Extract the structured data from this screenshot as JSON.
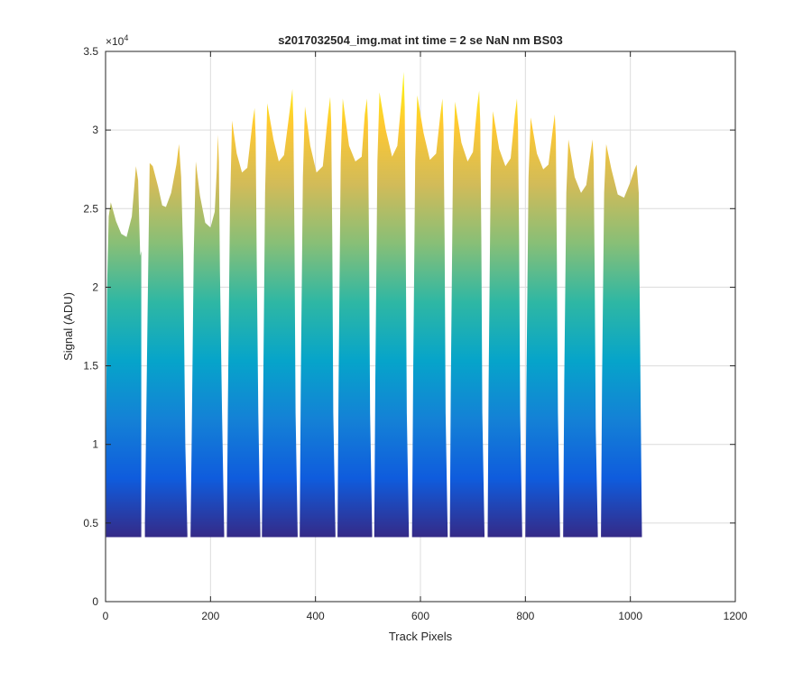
{
  "chart_data": {
    "type": "area",
    "title": "s2017032504_img.mat int time = 2 se  NaN nm BS03",
    "xlabel": "Track Pixels",
    "ylabel": "Signal (ADU)",
    "exponent_label": "×10",
    "exponent_power": "4",
    "xlim": [
      0,
      1200
    ],
    "ylim": [
      0,
      35000
    ],
    "xticks": [
      0,
      200,
      400,
      600,
      800,
      1000,
      1200
    ],
    "xtick_labels": [
      "0",
      "200",
      "400",
      "600",
      "800",
      "1000",
      "1200"
    ],
    "yticks": [
      0,
      5000,
      10000,
      15000,
      20000,
      25000,
      30000,
      35000
    ],
    "ytick_labels": [
      "0",
      "0.5",
      "1",
      "1.5",
      "2",
      "2.5",
      "3",
      "3.5"
    ],
    "grid": true,
    "baseline": 4100,
    "colormap": [
      "#352a87",
      "#0f5cdd",
      "#1481d6",
      "#06a4ca",
      "#2eb7a4",
      "#87bf77",
      "#d1bb59",
      "#fec832",
      "#f9fb0e"
    ],
    "segments": [
      {
        "x": [
          1,
          3,
          6,
          10,
          20,
          30,
          40,
          50,
          58,
          62,
          66,
          68
        ],
        "y": [
          11000,
          20000,
          24500,
          25400,
          24200,
          23400,
          23200,
          24500,
          27700,
          26800,
          22000,
          22300
        ]
      },
      {
        "x": [
          75,
          80,
          84,
          90,
          100,
          108,
          115,
          125,
          135,
          140,
          144,
          148,
          152,
          156
        ],
        "y": [
          5000,
          18000,
          27900,
          27700,
          26400,
          25200,
          25100,
          26000,
          27800,
          29100,
          27000,
          22000,
          10000,
          4300
        ]
      },
      {
        "x": [
          162,
          164,
          168,
          172,
          180,
          190,
          200,
          208,
          212,
          214,
          216,
          218,
          222,
          226
        ],
        "y": [
          4300,
          10000,
          22000,
          28000,
          25800,
          24100,
          23800,
          24800,
          27500,
          29700,
          28000,
          21000,
          12000,
          4300
        ]
      },
      {
        "x": [
          231,
          233,
          237,
          241,
          250,
          260,
          270,
          280,
          284,
          286,
          288,
          291,
          295
        ],
        "y": [
          4300,
          12000,
          25000,
          30600,
          28500,
          27300,
          27600,
          30500,
          31400,
          29500,
          22000,
          12000,
          4300
        ]
      },
      {
        "x": [
          298,
          300,
          304,
          308,
          320,
          330,
          340,
          352,
          356,
          358,
          360,
          362,
          366
        ],
        "y": [
          4300,
          12000,
          26000,
          31700,
          29400,
          28000,
          28400,
          31500,
          32600,
          30500,
          23000,
          12000,
          4300
        ]
      },
      {
        "x": [
          370,
          372,
          376,
          380,
          390,
          402,
          414,
          424,
          428,
          430,
          432,
          434,
          438
        ],
        "y": [
          4300,
          14000,
          27000,
          31500,
          29000,
          27300,
          27700,
          31000,
          32100,
          30500,
          23000,
          12000,
          4300
        ]
      },
      {
        "x": [
          442,
          444,
          448,
          452,
          464,
          476,
          488,
          494,
          498,
          500,
          502,
          504,
          508
        ],
        "y": [
          4300,
          14000,
          28000,
          32000,
          29000,
          28000,
          28300,
          31000,
          32000,
          30500,
          23000,
          12000,
          4300
        ]
      },
      {
        "x": [
          512,
          514,
          518,
          522,
          534,
          546,
          556,
          564,
          568,
          570,
          572,
          574,
          578
        ],
        "y": [
          4300,
          14000,
          28000,
          32400,
          30000,
          28300,
          29000,
          32000,
          33700,
          31500,
          23000,
          12000,
          4300
        ]
      },
      {
        "x": [
          584,
          586,
          590,
          594,
          606,
          618,
          630,
          638,
          642,
          644,
          646,
          648,
          652
        ],
        "y": [
          4300,
          14000,
          28000,
          32200,
          29800,
          28100,
          28500,
          31000,
          32000,
          30000,
          23000,
          12000,
          4300
        ]
      },
      {
        "x": [
          656,
          658,
          662,
          666,
          678,
          690,
          700,
          708,
          712,
          714,
          716,
          718,
          722
        ],
        "y": [
          4300,
          14000,
          28000,
          31800,
          29200,
          28000,
          28600,
          31500,
          32500,
          30500,
          23000,
          12000,
          4300
        ]
      },
      {
        "x": [
          728,
          730,
          734,
          738,
          750,
          762,
          772,
          780,
          784,
          786,
          788,
          790,
          794
        ],
        "y": [
          4300,
          14000,
          27500,
          31200,
          28800,
          27700,
          28200,
          31000,
          32000,
          30000,
          23000,
          12000,
          4300
        ]
      },
      {
        "x": [
          800,
          802,
          806,
          810,
          822,
          834,
          844,
          852,
          856,
          858,
          860,
          862,
          866
        ],
        "y": [
          4300,
          14000,
          27000,
          30800,
          28500,
          27500,
          27800,
          30000,
          31000,
          29500,
          22000,
          12000,
          4300
        ]
      },
      {
        "x": [
          872,
          874,
          878,
          882,
          894,
          906,
          916,
          924,
          928,
          930,
          932,
          934,
          938
        ],
        "y": [
          4300,
          14000,
          26000,
          29400,
          27000,
          26000,
          26500,
          28500,
          29400,
          28000,
          21000,
          11000,
          4300
        ]
      },
      {
        "x": [
          944,
          946,
          950,
          954,
          964,
          976,
          988,
          1000,
          1008,
          1012,
          1016,
          1019,
          1022
        ],
        "y": [
          4300,
          14000,
          26000,
          29100,
          27500,
          25900,
          25700,
          26700,
          27500,
          27800,
          26000,
          15000,
          4200
        ]
      }
    ]
  }
}
